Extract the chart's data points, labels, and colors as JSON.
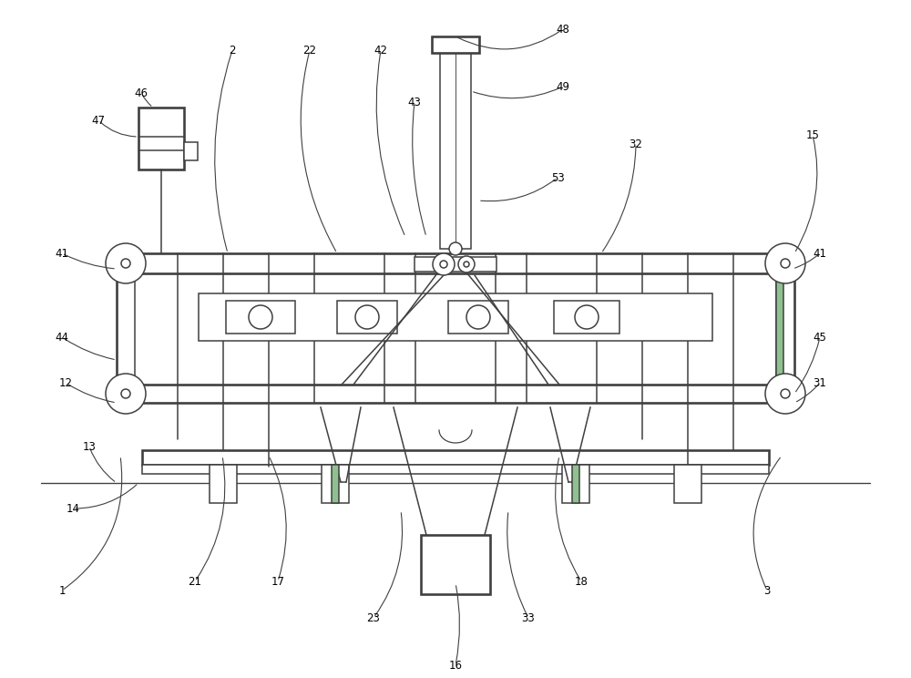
{
  "bg": "#ffffff",
  "lc": "#404040",
  "lw": 1.1,
  "lw2": 1.9,
  "fig_w": 10.0,
  "fig_h": 7.44
}
